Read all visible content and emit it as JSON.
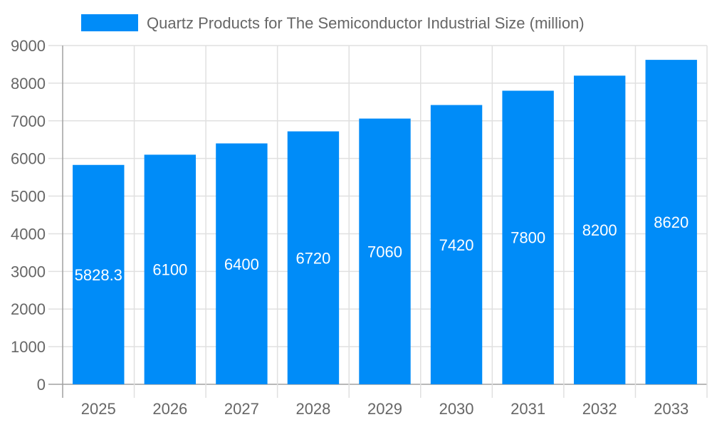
{
  "chart_data": {
    "type": "bar",
    "categories": [
      "2025",
      "2026",
      "2027",
      "2028",
      "2029",
      "2030",
      "2031",
      "2032",
      "2033"
    ],
    "series": [
      {
        "name": "Quartz Products for The Semiconductor Industrial Size (million)",
        "values": [
          5828.3,
          6100,
          6400,
          6720,
          7060,
          7420,
          7800,
          8200,
          8620
        ],
        "labels": [
          "5828.3",
          "6100",
          "6400",
          "6720",
          "7060",
          "7420",
          "7800",
          "8200",
          "8620"
        ]
      }
    ],
    "yticks": [
      "0",
      "1000",
      "2000",
      "3000",
      "4000",
      "5000",
      "6000",
      "7000",
      "8000",
      "9000"
    ],
    "ylim": [
      0,
      9000
    ],
    "grid": true,
    "legend": "top-center",
    "colors": {
      "bar": "#008cf8",
      "grid": "#e0e0e0",
      "axis": "#a0a0a0",
      "text": "#666666",
      "label": "#ffffff"
    }
  }
}
